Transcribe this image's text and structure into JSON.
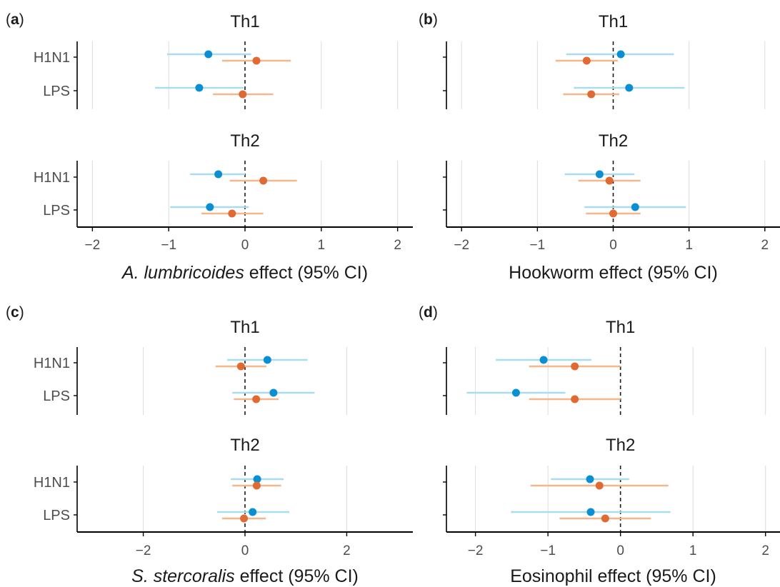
{
  "colors": {
    "series_a": "#0a8fd2",
    "series_a_ci": "#a8dcf0",
    "series_b": "#df6a34",
    "series_b_ci": "#f4b68c",
    "axis": "#000000",
    "grid": "#dcdcdc",
    "text": "#1a1a1a",
    "tick_label": "#4d4d4d"
  },
  "chart_data": [
    {
      "type": "scatter",
      "label": "(a)",
      "xlabel_italic": "A. lumbricoides",
      "xlabel_rest": " effect (95% CI)",
      "xlim": [
        -2.2,
        2.2
      ],
      "xticks": [
        -2,
        -1,
        0,
        1,
        2
      ],
      "tick_labels": [
        "−2",
        "−1",
        "0",
        "1",
        "2"
      ],
      "grid": true,
      "reference_line": 0,
      "categories": [
        "H1N1",
        "LPS"
      ],
      "facets": [
        {
          "title": "Th1",
          "series": [
            {
              "points": [
                {
                  "y": "H1N1",
                  "est": -0.48,
                  "lo": -1.02,
                  "hi": 0.08
                },
                {
                  "y": "LPS",
                  "est": -0.6,
                  "lo": -1.18,
                  "hi": -0.02
                }
              ]
            },
            {
              "points": [
                {
                  "y": "H1N1",
                  "est": 0.15,
                  "lo": -0.3,
                  "hi": 0.6
                },
                {
                  "y": "LPS",
                  "est": -0.03,
                  "lo": -0.42,
                  "hi": 0.37
                }
              ]
            }
          ]
        },
        {
          "title": "Th2",
          "series": [
            {
              "points": [
                {
                  "y": "H1N1",
                  "est": -0.35,
                  "lo": -0.72,
                  "hi": 0.0
                },
                {
                  "y": "LPS",
                  "est": -0.46,
                  "lo": -0.98,
                  "hi": 0.05
                }
              ]
            },
            {
              "points": [
                {
                  "y": "H1N1",
                  "est": 0.24,
                  "lo": -0.2,
                  "hi": 0.68
                },
                {
                  "y": "LPS",
                  "est": -0.17,
                  "lo": -0.57,
                  "hi": 0.24
                }
              ]
            }
          ]
        }
      ]
    },
    {
      "type": "scatter",
      "label": "(b)",
      "xlabel_italic": "",
      "xlabel_rest": "Hookworm effect (95% CI)",
      "xlim": [
        -2.2,
        2.2
      ],
      "xticks": [
        -2,
        -1,
        0,
        1,
        2
      ],
      "tick_labels": [
        "−2",
        "−1",
        "0",
        "1",
        "2"
      ],
      "grid": true,
      "reference_line": 0,
      "categories": [
        "H1N1",
        "LPS"
      ],
      "facets": [
        {
          "title": "Th1",
          "series": [
            {
              "points": [
                {
                  "y": "H1N1",
                  "est": 0.1,
                  "lo": -0.62,
                  "hi": 0.8
                },
                {
                  "y": "LPS",
                  "est": 0.21,
                  "lo": -0.52,
                  "hi": 0.94
                }
              ]
            },
            {
              "points": [
                {
                  "y": "H1N1",
                  "est": -0.35,
                  "lo": -0.76,
                  "hi": 0.06
                },
                {
                  "y": "LPS",
                  "est": -0.29,
                  "lo": -0.66,
                  "hi": 0.08
                }
              ]
            }
          ]
        },
        {
          "title": "Th2",
          "series": [
            {
              "points": [
                {
                  "y": "H1N1",
                  "est": -0.18,
                  "lo": -0.64,
                  "hi": 0.28
                },
                {
                  "y": "LPS",
                  "est": 0.29,
                  "lo": -0.38,
                  "hi": 0.96
                }
              ]
            },
            {
              "points": [
                {
                  "y": "H1N1",
                  "est": -0.05,
                  "lo": -0.46,
                  "hi": 0.36
                },
                {
                  "y": "LPS",
                  "est": 0.0,
                  "lo": -0.36,
                  "hi": 0.36
                }
              ]
            }
          ]
        }
      ]
    },
    {
      "type": "scatter",
      "label": "(c)",
      "xlabel_italic": "S. stercoralis",
      "xlabel_rest": " effect (95% CI)",
      "xlim": [
        -3.3,
        3.3
      ],
      "xticks": [
        -2,
        0,
        2
      ],
      "tick_labels": [
        "−2",
        "0",
        "2"
      ],
      "grid": true,
      "reference_line": 0,
      "categories": [
        "H1N1",
        "LPS"
      ],
      "facets": [
        {
          "title": "Th1",
          "series": [
            {
              "points": [
                {
                  "y": "H1N1",
                  "est": 0.44,
                  "lo": -0.35,
                  "hi": 1.23
                },
                {
                  "y": "LPS",
                  "est": 0.56,
                  "lo": -0.25,
                  "hi": 1.37
                }
              ]
            },
            {
              "points": [
                {
                  "y": "H1N1",
                  "est": -0.08,
                  "lo": -0.58,
                  "hi": 0.42
                },
                {
                  "y": "LPS",
                  "est": 0.22,
                  "lo": -0.22,
                  "hi": 0.66
                }
              ]
            }
          ]
        },
        {
          "title": "Th2",
          "series": [
            {
              "points": [
                {
                  "y": "H1N1",
                  "est": 0.24,
                  "lo": -0.28,
                  "hi": 0.76
                },
                {
                  "y": "LPS",
                  "est": 0.15,
                  "lo": -0.55,
                  "hi": 0.87
                }
              ]
            },
            {
              "points": [
                {
                  "y": "H1N1",
                  "est": 0.23,
                  "lo": -0.25,
                  "hi": 0.71
                },
                {
                  "y": "LPS",
                  "est": -0.02,
                  "lo": -0.45,
                  "hi": 0.41
                }
              ]
            }
          ]
        }
      ]
    },
    {
      "type": "scatter",
      "label": "(d)",
      "xlabel_italic": "",
      "xlabel_rest": "Eosinophil effect (95% CI)",
      "xlim": [
        -2.4,
        2.2
      ],
      "xticks": [
        -2,
        -1,
        0,
        1,
        2
      ],
      "tick_labels": [
        "−2",
        "−1",
        "0",
        "1",
        "2"
      ],
      "grid": true,
      "reference_line": 0,
      "categories": [
        "H1N1",
        "LPS"
      ],
      "facets": [
        {
          "title": "Th1",
          "series": [
            {
              "points": [
                {
                  "y": "H1N1",
                  "est": -1.06,
                  "lo": -1.72,
                  "hi": -0.4
                },
                {
                  "y": "LPS",
                  "est": -1.44,
                  "lo": -2.12,
                  "hi": -0.76
                }
              ]
            },
            {
              "points": [
                {
                  "y": "H1N1",
                  "est": -0.63,
                  "lo": -1.26,
                  "hi": 0.0
                },
                {
                  "y": "LPS",
                  "est": -0.63,
                  "lo": -1.26,
                  "hi": 0.0
                }
              ]
            }
          ]
        },
        {
          "title": "Th2",
          "series": [
            {
              "points": [
                {
                  "y": "H1N1",
                  "est": -0.42,
                  "lo": -0.96,
                  "hi": 0.12
                },
                {
                  "y": "LPS",
                  "est": -0.41,
                  "lo": -1.51,
                  "hi": 0.69
                }
              ]
            },
            {
              "points": [
                {
                  "y": "H1N1",
                  "est": -0.29,
                  "lo": -1.24,
                  "hi": 0.66
                },
                {
                  "y": "LPS",
                  "est": -0.21,
                  "lo": -0.84,
                  "hi": 0.42
                }
              ]
            }
          ]
        }
      ]
    }
  ]
}
